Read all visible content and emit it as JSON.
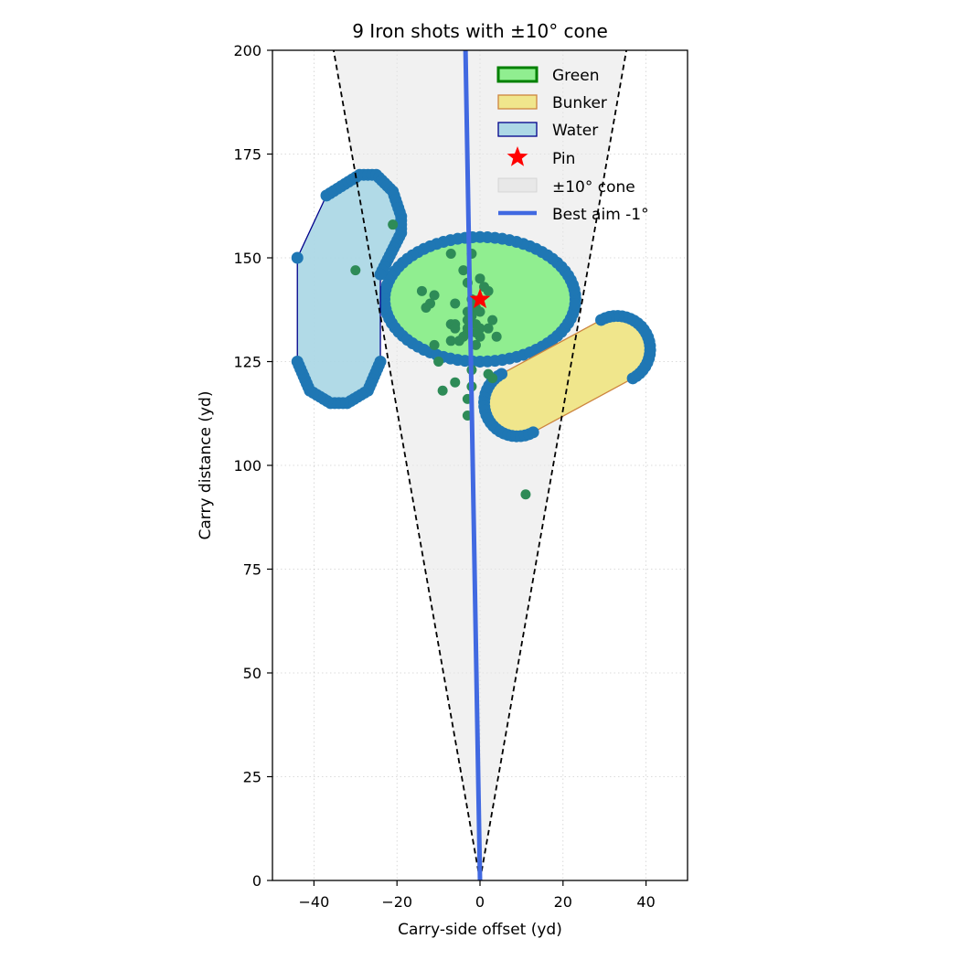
{
  "chart_data": {
    "type": "scatter",
    "title": "9 Iron shots with ±10° cone",
    "xlabel": "Carry-side offset (yd)",
    "ylabel": "Carry distance (yd)",
    "xlim": [
      -50,
      50
    ],
    "ylim": [
      0,
      200
    ],
    "xticks": [
      -40,
      -20,
      0,
      20,
      40
    ],
    "yticks": [
      0,
      25,
      50,
      75,
      100,
      125,
      150,
      175,
      200
    ],
    "grid": true,
    "legend_position": "top-right",
    "legend": [
      "Green",
      "Bunker",
      "Water",
      "Pin",
      "±10° cone",
      "Best aim -1°"
    ],
    "colors": {
      "green_fill": "#90ee90",
      "green_edge": "#008000",
      "bunker_fill": "#f0e68c",
      "bunker_edge": "#cd853f",
      "water_fill": "#add8e6",
      "water_edge": "#00008b",
      "boundary_points": "#1f77b4",
      "shots": "#2e8b57",
      "pin": "#ff0000",
      "cone": "#e6e6e6",
      "aim": "#4169e1"
    },
    "cone_half_angle_deg": 10,
    "best_aim_deg": -1,
    "pin": [
      0,
      140
    ],
    "green": {
      "center": [
        0,
        140
      ],
      "half_width": 23,
      "half_height": 15
    },
    "bunker": {
      "start": [
        9,
        115
      ],
      "end": [
        33,
        128
      ],
      "radius": 8
    },
    "water": {
      "points": [
        [
          -44,
          125
        ],
        [
          -44,
          150
        ],
        [
          -37,
          165
        ],
        [
          -29,
          170
        ],
        [
          -25,
          170
        ],
        [
          -21,
          166
        ],
        [
          -19,
          160
        ],
        [
          -19,
          156
        ],
        [
          -24,
          146
        ],
        [
          -24,
          125
        ],
        [
          -27,
          118
        ],
        [
          -32,
          115
        ],
        [
          -36,
          115
        ],
        [
          -41,
          118
        ]
      ]
    },
    "shots": [
      [
        -21,
        158
      ],
      [
        -30,
        147
      ],
      [
        -7,
        151
      ],
      [
        -2,
        151
      ],
      [
        -4,
        147
      ],
      [
        0,
        145
      ],
      [
        -3,
        144
      ],
      [
        1,
        143
      ],
      [
        2,
        142
      ],
      [
        -14,
        142
      ],
      [
        -11,
        141
      ],
      [
        -6,
        139
      ],
      [
        -2,
        140
      ],
      [
        -12,
        139
      ],
      [
        -13,
        138
      ],
      [
        -1,
        138
      ],
      [
        -3,
        137
      ],
      [
        0,
        137
      ],
      [
        -2,
        136
      ],
      [
        -3,
        135
      ],
      [
        3,
        135
      ],
      [
        -7,
        134
      ],
      [
        -6,
        134
      ],
      [
        -1,
        134
      ],
      [
        0,
        133
      ],
      [
        -6,
        133
      ],
      [
        -3,
        133
      ],
      [
        2,
        133
      ],
      [
        0,
        131
      ],
      [
        -1,
        132
      ],
      [
        -3,
        132
      ],
      [
        -4,
        131
      ],
      [
        4,
        131
      ],
      [
        -7,
        130
      ],
      [
        -5,
        130
      ],
      [
        -11,
        129
      ],
      [
        -1,
        129
      ],
      [
        -10,
        125
      ],
      [
        -2,
        123
      ],
      [
        2,
        122
      ],
      [
        3,
        121
      ],
      [
        -6,
        120
      ],
      [
        -2,
        119
      ],
      [
        -9,
        118
      ],
      [
        -3,
        116
      ],
      [
        -3,
        112
      ],
      [
        11,
        93
      ]
    ]
  }
}
